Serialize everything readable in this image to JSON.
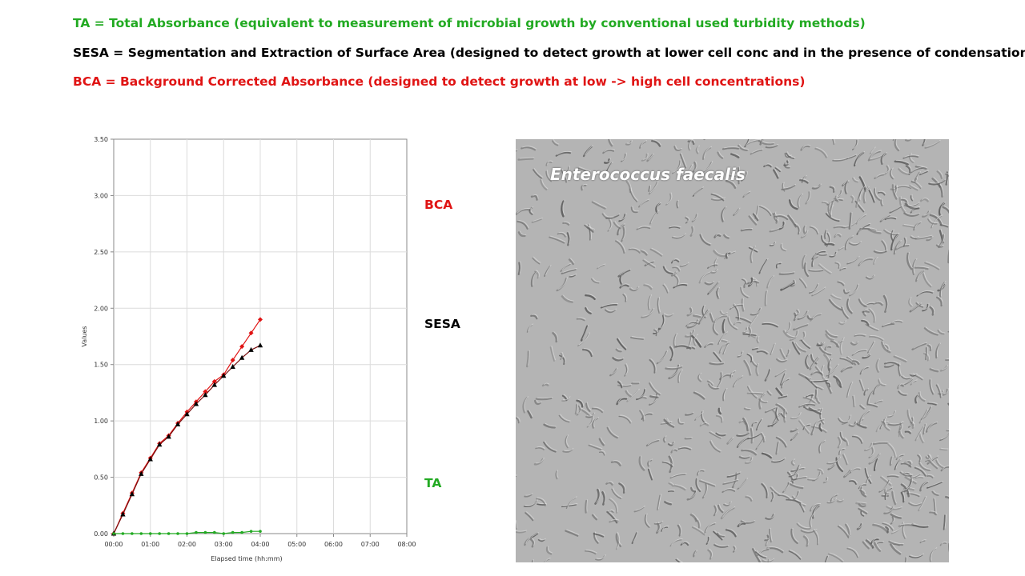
{
  "definitions": {
    "ta": "TA = Total Absorbance  (equivalent to measurement of microbial growth by conventional used turbidity methods)",
    "sesa": "SESA = Segmentation and Extraction of Surface Area  (designed to detect growth at lower cell conc and in the presence of condensation)",
    "bca": "BCA = Background Corrected Absorbance  (designed to detect growth at low -> high cell concentrations)"
  },
  "colors": {
    "ta": "#22aa22",
    "sesa": "#000000",
    "bca": "#e01414",
    "grid": "#dcdcdc",
    "axis": "#888888"
  },
  "series_labels": {
    "bca": "BCA",
    "sesa": "SESA",
    "ta": "TA"
  },
  "micrograph": {
    "caption": "Enterococcus faecalis"
  },
  "chart_data": {
    "type": "line",
    "xlabel": "Elapsed time (hh:mm)",
    "ylabel": "Values",
    "x_tick_labels": [
      "00:00",
      "01:00",
      "02:00",
      "03:00",
      "04:00",
      "05:00",
      "06:00",
      "07:00",
      "08:00"
    ],
    "y_tick_labels": [
      "0.00",
      "0.50",
      "1.00",
      "1.50",
      "2.00",
      "2.50",
      "3.00",
      "3.50"
    ],
    "xlim": [
      0,
      8
    ],
    "ylim": [
      0,
      3.5
    ],
    "grid": true,
    "series": [
      {
        "name": "BCA",
        "color": "#e01414",
        "marker": "diamond",
        "x": [
          0,
          0.25,
          0.5,
          0.75,
          1.0,
          1.25,
          1.5,
          1.75,
          2.0,
          2.25,
          2.5,
          2.75,
          3.0,
          3.25,
          3.5,
          3.75,
          4.0
        ],
        "y": [
          0.0,
          0.18,
          0.36,
          0.54,
          0.67,
          0.8,
          0.87,
          0.98,
          1.08,
          1.17,
          1.26,
          1.35,
          1.41,
          1.54,
          1.66,
          1.78,
          1.9
        ]
      },
      {
        "name": "SESA",
        "color": "#000000",
        "marker": "triangle",
        "x": [
          0,
          0.25,
          0.5,
          0.75,
          1.0,
          1.25,
          1.5,
          1.75,
          2.0,
          2.25,
          2.5,
          2.75,
          3.0,
          3.25,
          3.5,
          3.75,
          4.0
        ],
        "y": [
          0.0,
          0.17,
          0.35,
          0.53,
          0.66,
          0.79,
          0.86,
          0.97,
          1.06,
          1.15,
          1.23,
          1.32,
          1.4,
          1.48,
          1.56,
          1.63,
          1.67
        ]
      },
      {
        "name": "TA",
        "color": "#22aa22",
        "marker": "dot",
        "x": [
          0,
          0.25,
          0.5,
          0.75,
          1.0,
          1.25,
          1.5,
          1.75,
          2.0,
          2.25,
          2.5,
          2.75,
          3.0,
          3.25,
          3.5,
          3.75,
          4.0
        ],
        "y": [
          0.0,
          0.0,
          0.0,
          0.0,
          0.0,
          0.0,
          0.0,
          0.0,
          0.0,
          0.01,
          0.01,
          0.01,
          0.0,
          0.01,
          0.01,
          0.02,
          0.02
        ]
      }
    ]
  }
}
